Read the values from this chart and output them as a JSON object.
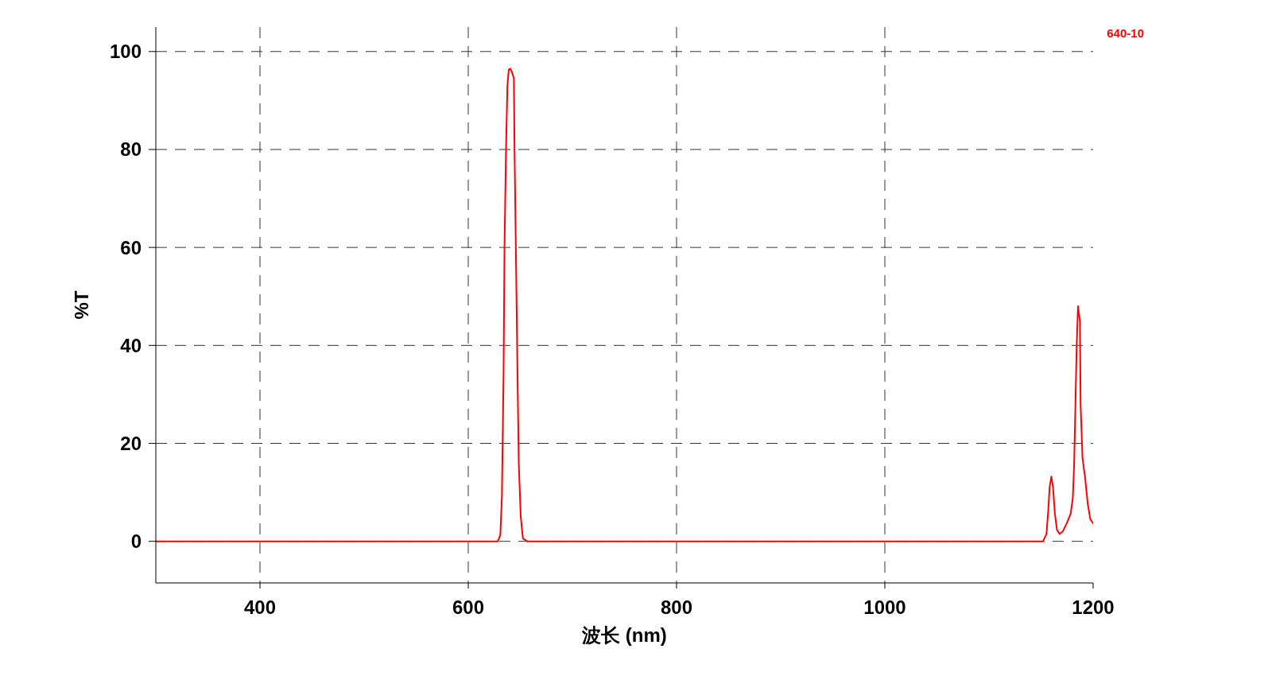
{
  "chart_data": {
    "type": "line",
    "xlabel": "波长 (nm)",
    "ylabel": "%T",
    "x": [
      300,
      628.5,
      630.8,
      632.3,
      633.9,
      634.8,
      636.3,
      637.6,
      638.9,
      640.4,
      642,
      643.8,
      644.4,
      645.7,
      647.3,
      648.5,
      650.4,
      652.5,
      656.6,
      1151.9,
      1155.2,
      1157,
      1158.2,
      1159.9,
      1161.5,
      1163.3,
      1165.3,
      1167.8,
      1170.8,
      1174.7,
      1178.4,
      1180.5,
      1181.7,
      1183,
      1184.2,
      1185.5,
      1186.3,
      1187.3,
      1188,
      1189.8,
      1192.3,
      1194.8,
      1197.3,
      1200
    ],
    "series": [
      {
        "name": "640-10",
        "color": "#ff0000",
        "values": [
          0,
          0,
          1.3,
          9,
          34,
          60,
          80.5,
          93,
          96.3,
          96.5,
          95.8,
          94.5,
          80.5,
          60,
          34,
          16,
          5,
          0.6,
          0,
          0,
          1.5,
          6.6,
          11,
          13.2,
          11,
          5.6,
          2.3,
          1.5,
          2,
          3.7,
          5.6,
          8.8,
          15.3,
          27.7,
          40,
          48,
          46.6,
          45,
          27.7,
          17,
          13,
          7.7,
          4.5,
          3.7
        ]
      }
    ],
    "xlim": [
      300,
      1200
    ],
    "ylim": [
      -8.5,
      105
    ],
    "xticks": [
      400,
      600,
      800,
      1000,
      1200
    ],
    "yticks": [
      0,
      20,
      40,
      60,
      80,
      100
    ],
    "grid": true,
    "legend": "top right",
    "marker": "none",
    "line_style": "solid"
  }
}
